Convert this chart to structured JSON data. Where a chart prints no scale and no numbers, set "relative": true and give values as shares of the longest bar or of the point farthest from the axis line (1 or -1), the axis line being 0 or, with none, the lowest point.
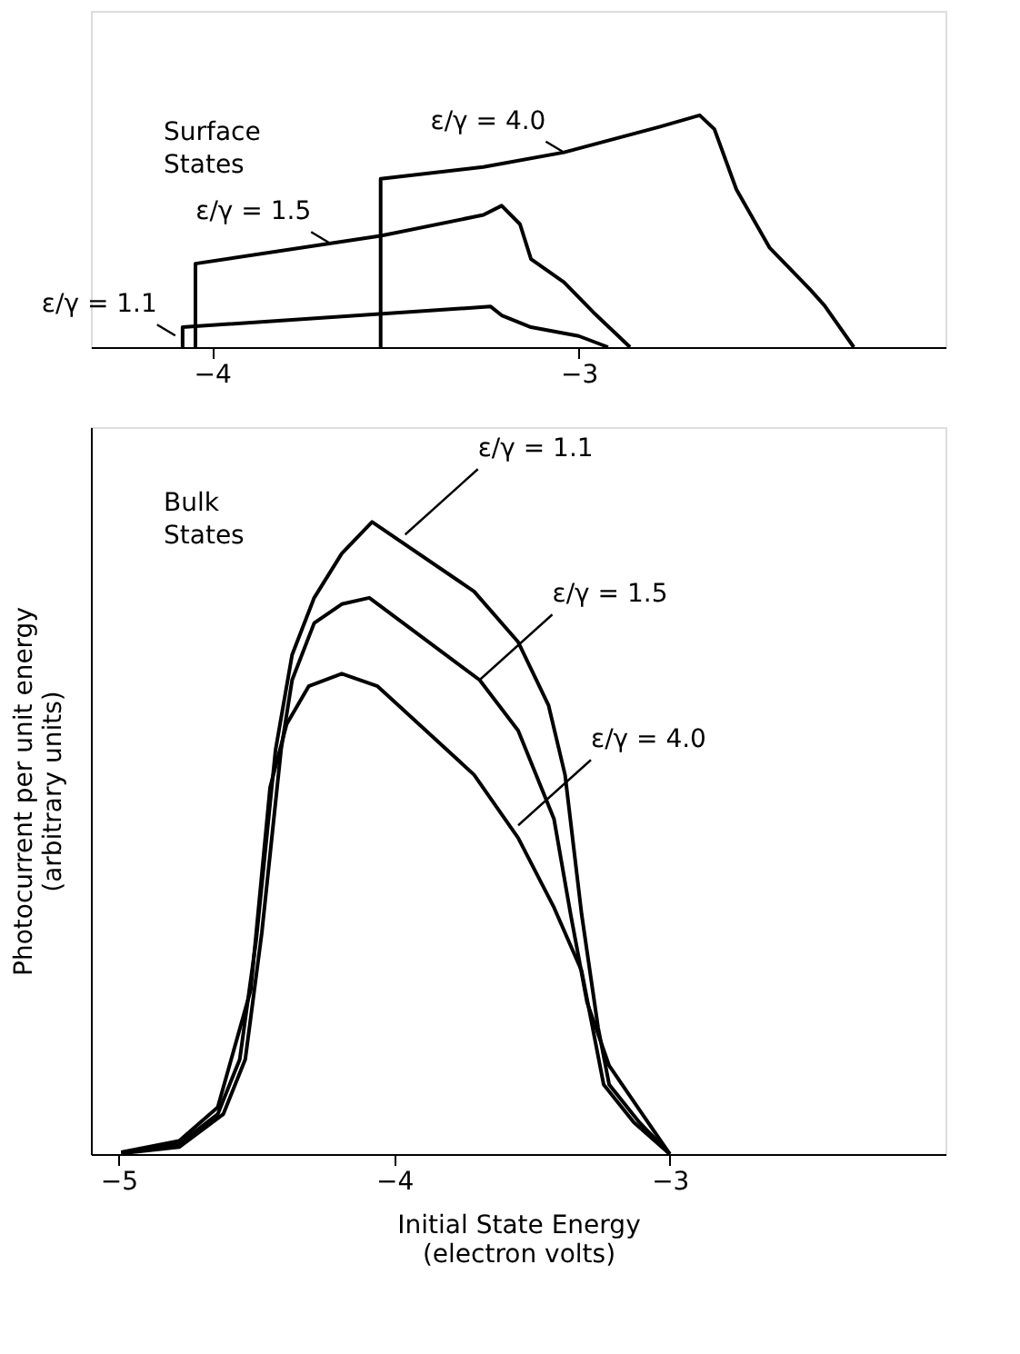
{
  "chart_data": [
    {
      "type": "line",
      "title": "Surface States",
      "relative": true,
      "xlim": [
        -4.33,
        -2.0
      ],
      "xticks": [
        -4,
        -3
      ],
      "grid": false,
      "marker": "none",
      "line_style": "solid",
      "tick_labels": "x",
      "series": [
        {
          "color": "#000000",
          "x": [
            -4.08,
            -4.08,
            -4.045,
            -3.24,
            -3.21,
            -3.13,
            -3.0,
            -2.92
          ],
          "values": [
            0,
            0.086,
            0.09,
            0.175,
            0.137,
            0.086,
            0.048,
            0
          ]
        },
        {
          "color": "#000000",
          "x": [
            -4.045,
            -4.045,
            -3.54,
            -3.26,
            -3.21,
            -3.16,
            -3.13,
            -3.04,
            -2.96,
            -2.86
          ],
          "values": [
            0,
            0.36,
            0.48,
            0.57,
            0.61,
            0.53,
            0.38,
            0.28,
            0.15,
            0
          ]
        },
        {
          "color": "#000000",
          "x": [
            -3.54,
            -3.54,
            -3.26,
            -3.04,
            -2.78,
            -2.67,
            -2.63,
            -2.57,
            -2.48,
            -2.37,
            -2.33,
            -2.25
          ],
          "values": [
            0,
            0.726,
            0.777,
            0.84,
            0.95,
            1.0,
            0.94,
            0.68,
            0.43,
            0.25,
            0.18,
            0
          ]
        }
      ],
      "annotations": [
        {
          "text": "ε/γ = 4.0",
          "x": -3.04,
          "y": 0.84
        },
        {
          "text": "ε/γ = 1.5",
          "x": -3.68,
          "y": 0.45
        },
        {
          "text": "ε/γ = 1.1",
          "x": -4.1,
          "y": 0.05
        }
      ]
    },
    {
      "type": "line",
      "title": "Bulk States",
      "xlabel": "Initial State Energy\n(electron volts)",
      "ylabel": "Photocurrent per unit energy\n(arbitrary units)",
      "relative": true,
      "xlim": [
        -5.1,
        -2.0
      ],
      "xticks": [
        -5,
        -4,
        -3
      ],
      "grid": false,
      "marker": "none",
      "line_style": "solid",
      "tick_labels": "x",
      "series": [
        {
          "color": "#000000",
          "x": [
            -4.99,
            -4.78,
            -4.64,
            -4.56,
            -4.5,
            -4.43,
            -4.37,
            -4.29,
            -4.19,
            -4.08,
            -3.71,
            -3.55,
            -3.44,
            -3.38,
            -3.32,
            -3.26,
            -3.22,
            -3.11,
            -3.0
          ],
          "values": [
            0.002,
            0.016,
            0.063,
            0.15,
            0.34,
            0.64,
            0.79,
            0.88,
            0.95,
            1.0,
            0.89,
            0.81,
            0.71,
            0.6,
            0.38,
            0.2,
            0.11,
            0.05,
            0
          ]
        },
        {
          "color": "#000000",
          "x": [
            -4.99,
            -4.78,
            -4.62,
            -4.54,
            -4.48,
            -4.41,
            -4.37,
            -4.29,
            -4.19,
            -4.09,
            -3.69,
            -3.55,
            -3.42,
            -3.36,
            -3.3,
            -3.22,
            -3.11,
            -3.0
          ],
          "values": [
            0.001,
            0.011,
            0.063,
            0.15,
            0.35,
            0.64,
            0.75,
            0.84,
            0.87,
            0.88,
            0.75,
            0.67,
            0.53,
            0.38,
            0.24,
            0.14,
            0.07,
            0
          ]
        },
        {
          "color": "#000000",
          "x": [
            -4.99,
            -4.78,
            -4.64,
            -4.52,
            -4.45,
            -4.39,
            -4.31,
            -4.19,
            -4.06,
            -3.71,
            -3.55,
            -3.42,
            -3.32,
            -3.24,
            -3.13,
            -3.0
          ],
          "values": [
            0.003,
            0.021,
            0.074,
            0.26,
            0.58,
            0.68,
            0.74,
            0.76,
            0.74,
            0.6,
            0.5,
            0.39,
            0.29,
            0.11,
            0.05,
            0
          ]
        }
      ],
      "annotations": [
        {
          "text": "ε/γ = 1.1",
          "x": -3.96,
          "y": 0.98
        },
        {
          "text": "ε/γ = 1.5",
          "x": -3.69,
          "y": 0.75
        },
        {
          "text": "ε/γ = 4.0",
          "x": -3.55,
          "y": 0.52
        }
      ]
    }
  ]
}
